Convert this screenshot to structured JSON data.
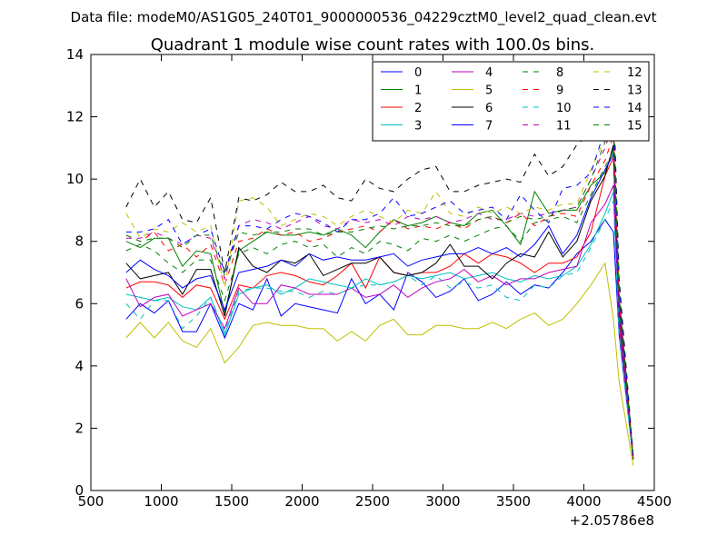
{
  "chart_data": {
    "type": "line",
    "suptitle": "Data file: modeM0/AS1G05_240T01_9000000536_04229cztM0_level2_quad_clean.evt",
    "title": "Quadrant 1 module wise count rates with 100.0s bins.",
    "xlabel": "",
    "ylabel": "",
    "x_offset_label": "+2.05786e8",
    "xlim": [
      500,
      4500
    ],
    "ylim": [
      0,
      14
    ],
    "xticks": [
      500,
      1000,
      1500,
      2000,
      2500,
      3000,
      3500,
      4000,
      4500
    ],
    "yticks": [
      0,
      2,
      4,
      6,
      8,
      10,
      12,
      14
    ],
    "grid": false,
    "legend_position": "top-right",
    "x": [
      750,
      850,
      950,
      1050,
      1150,
      1250,
      1350,
      1450,
      1550,
      1650,
      1750,
      1850,
      1950,
      2050,
      2150,
      2250,
      2350,
      2450,
      2550,
      2650,
      2750,
      2850,
      2950,
      3050,
      3150,
      3250,
      3350,
      3450,
      3550,
      3650,
      3750,
      3850,
      3950,
      4050,
      4150,
      4210,
      4250,
      4350
    ],
    "series": [
      {
        "name": "0",
        "color": "#0000ff",
        "dash": "solid",
        "values": [
          5.5,
          6.0,
          5.7,
          6.1,
          5.1,
          5.1,
          6.0,
          4.9,
          6.0,
          5.8,
          6.8,
          5.6,
          6.0,
          5.9,
          5.8,
          5.7,
          6.8,
          6.0,
          6.3,
          5.8,
          7.0,
          6.7,
          6.2,
          6.4,
          6.8,
          6.1,
          6.3,
          6.7,
          6.3,
          6.6,
          6.5,
          7.0,
          7.6,
          8.0,
          8.7,
          8.3,
          5.0,
          1.0
        ]
      },
      {
        "name": "1",
        "color": "#008000",
        "dash": "solid",
        "values": [
          8.0,
          7.8,
          8.1,
          8.1,
          7.2,
          7.7,
          7.6,
          5.7,
          7.7,
          8.0,
          8.3,
          8.2,
          8.2,
          8.3,
          8.2,
          8.4,
          8.2,
          7.8,
          8.3,
          8.7,
          8.5,
          8.6,
          8.8,
          8.6,
          8.5,
          8.9,
          9.0,
          8.5,
          7.9,
          9.6,
          8.9,
          9.0,
          9.0,
          9.8,
          10.2,
          11.0,
          6.0,
          1.0
        ]
      },
      {
        "name": "2",
        "color": "#ff0000",
        "dash": "solid",
        "values": [
          6.5,
          6.7,
          6.7,
          6.6,
          6.2,
          6.6,
          6.5,
          5.5,
          6.6,
          6.5,
          6.9,
          7.0,
          6.9,
          6.7,
          6.6,
          6.9,
          7.3,
          6.5,
          7.5,
          7.0,
          6.9,
          7.0,
          7.0,
          7.2,
          7.6,
          7.3,
          7.6,
          7.5,
          7.3,
          7.0,
          7.3,
          7.3,
          7.5,
          8.3,
          10.1,
          10.7,
          5.5,
          1.0
        ]
      },
      {
        "name": "3",
        "color": "#00bfbf",
        "dash": "solid",
        "values": [
          6.3,
          6.2,
          6.1,
          6.2,
          5.9,
          5.8,
          6.2,
          5.0,
          6.3,
          6.5,
          6.6,
          6.3,
          6.5,
          6.8,
          6.7,
          6.6,
          6.5,
          6.8,
          6.6,
          6.7,
          6.9,
          6.8,
          6.9,
          7.0,
          6.8,
          6.9,
          7.0,
          6.8,
          6.7,
          6.9,
          6.8,
          6.9,
          7.2,
          7.9,
          8.9,
          9.6,
          5.2,
          1.0
        ]
      },
      {
        "name": "4",
        "color": "#bf00bf",
        "dash": "solid",
        "values": [
          6.8,
          5.9,
          6.2,
          6.3,
          5.6,
          5.8,
          6.0,
          5.2,
          6.5,
          6.0,
          6.0,
          6.6,
          6.5,
          6.3,
          6.3,
          6.3,
          6.5,
          6.2,
          6.3,
          6.6,
          6.2,
          6.5,
          6.7,
          6.8,
          7.1,
          6.7,
          6.9,
          6.6,
          6.8,
          6.8,
          7.0,
          7.1,
          7.2,
          8.6,
          9.2,
          9.8,
          5.3,
          1.0
        ]
      },
      {
        "name": "5",
        "color": "#bfbf00",
        "dash": "solid",
        "values": [
          4.9,
          5.4,
          4.9,
          5.4,
          4.8,
          4.6,
          5.2,
          4.1,
          4.6,
          5.3,
          5.4,
          5.3,
          5.3,
          5.2,
          5.2,
          4.8,
          5.1,
          4.8,
          5.3,
          5.5,
          5.0,
          5.0,
          5.3,
          5.3,
          5.2,
          5.2,
          5.4,
          5.2,
          5.5,
          5.7,
          5.3,
          5.5,
          6.0,
          6.6,
          7.3,
          5.5,
          3.5,
          0.8
        ]
      },
      {
        "name": "6",
        "color": "#000000",
        "dash": "solid",
        "values": [
          7.3,
          6.8,
          6.9,
          7.0,
          6.3,
          7.1,
          7.1,
          5.6,
          7.8,
          7.2,
          7.0,
          7.4,
          7.3,
          7.6,
          6.9,
          7.1,
          7.3,
          7.3,
          7.5,
          7.0,
          6.9,
          7.0,
          7.3,
          7.9,
          7.2,
          7.2,
          6.8,
          7.3,
          7.6,
          7.5,
          8.3,
          7.5,
          8.0,
          9.3,
          10.1,
          11.1,
          6.2,
          1.1
        ]
      },
      {
        "name": "7",
        "color": "#0000ff",
        "dash": "solid",
        "values": [
          7.0,
          7.4,
          7.1,
          6.9,
          6.5,
          6.8,
          6.9,
          5.8,
          7.0,
          7.1,
          7.2,
          7.4,
          7.2,
          7.6,
          7.4,
          7.5,
          7.4,
          7.4,
          7.5,
          7.6,
          7.2,
          7.4,
          7.5,
          7.6,
          7.6,
          7.8,
          7.6,
          7.8,
          7.5,
          7.9,
          8.5,
          7.6,
          8.2,
          9.4,
          10.3,
          10.8,
          5.8,
          1.0
        ]
      },
      {
        "name": "8",
        "color": "#008000",
        "dash": "dashed",
        "values": [
          7.7,
          7.9,
          7.7,
          7.3,
          7.0,
          7.4,
          7.4,
          6.1,
          7.6,
          7.8,
          7.6,
          7.9,
          8.0,
          7.8,
          7.9,
          7.5,
          7.8,
          7.6,
          8.0,
          7.9,
          7.7,
          8.1,
          8.0,
          8.2,
          8.0,
          8.2,
          8.4,
          8.5,
          8.0,
          8.6,
          8.7,
          8.8,
          8.6,
          9.5,
          10.4,
          10.9,
          5.9,
          1.0
        ]
      },
      {
        "name": "9",
        "color": "#ff0000",
        "dash": "dashed",
        "values": [
          8.2,
          8.0,
          8.3,
          7.7,
          7.9,
          7.5,
          7.9,
          6.6,
          8.0,
          8.1,
          8.4,
          8.2,
          8.3,
          8.0,
          8.1,
          8.3,
          8.4,
          8.5,
          8.3,
          8.7,
          8.4,
          8.5,
          8.4,
          8.6,
          8.4,
          8.7,
          8.8,
          8.6,
          8.9,
          8.5,
          8.8,
          8.9,
          8.8,
          9.8,
          10.6,
          11.4,
          6.1,
          1.0
        ]
      },
      {
        "name": "10",
        "color": "#00bfbf",
        "dash": "dashed",
        "values": [
          6.0,
          5.5,
          6.1,
          6.1,
          5.2,
          5.6,
          6.2,
          5.1,
          6.4,
          6.5,
          6.5,
          6.4,
          6.4,
          6.2,
          6.4,
          6.3,
          6.5,
          6.6,
          6.6,
          6.7,
          6.9,
          6.6,
          6.9,
          6.5,
          6.7,
          6.5,
          6.6,
          6.2,
          6.1,
          6.6,
          6.5,
          6.9,
          7.0,
          7.8,
          8.7,
          9.3,
          5.0,
          1.0
        ]
      },
      {
        "name": "11",
        "color": "#bf00bf",
        "dash": "dashed",
        "values": [
          8.1,
          8.1,
          8.3,
          8.1,
          7.9,
          8.2,
          8.1,
          6.8,
          8.5,
          8.7,
          8.6,
          8.4,
          8.6,
          8.8,
          8.5,
          8.4,
          8.7,
          8.6,
          8.7,
          8.5,
          8.8,
          8.7,
          8.8,
          8.6,
          8.7,
          8.9,
          8.7,
          8.7,
          8.9,
          8.8,
          8.9,
          9.0,
          9.1,
          10.0,
          11.0,
          11.8,
          6.3,
          1.0
        ]
      },
      {
        "name": "12",
        "color": "#bfbf00",
        "dash": "dashed",
        "values": [
          8.9,
          8.1,
          8.4,
          8.3,
          8.6,
          8.3,
          8.5,
          6.5,
          9.3,
          9.4,
          9.1,
          8.5,
          8.7,
          8.9,
          8.8,
          8.5,
          8.8,
          9.0,
          8.8,
          8.6,
          9.0,
          8.9,
          9.6,
          8.9,
          8.8,
          9.1,
          8.9,
          9.1,
          8.9,
          9.1,
          9.0,
          9.2,
          9.2,
          10.3,
          11.3,
          12.2,
          6.5,
          1.1
        ]
      },
      {
        "name": "13",
        "color": "#000000",
        "dash": "dashed",
        "values": [
          9.1,
          10.0,
          9.1,
          9.6,
          8.7,
          8.6,
          9.4,
          7.0,
          9.4,
          9.3,
          9.5,
          9.9,
          9.6,
          9.6,
          9.8,
          9.4,
          9.3,
          10.0,
          9.7,
          9.6,
          10.0,
          10.3,
          10.4,
          9.6,
          9.6,
          9.8,
          9.9,
          10.0,
          9.9,
          10.8,
          10.1,
          10.4,
          11.1,
          11.5,
          12.2,
          12.9,
          6.8,
          1.1
        ]
      },
      {
        "name": "14",
        "color": "#0000ff",
        "dash": "dashed",
        "values": [
          8.3,
          8.3,
          8.4,
          8.7,
          7.9,
          8.2,
          8.4,
          7.0,
          8.5,
          8.5,
          8.4,
          8.7,
          8.9,
          8.8,
          8.6,
          8.3,
          8.7,
          8.7,
          8.9,
          9.4,
          8.8,
          8.9,
          9.1,
          9.3,
          8.9,
          9.0,
          9.1,
          8.7,
          9.5,
          9.0,
          8.6,
          9.7,
          9.8,
          10.2,
          11.6,
          12.4,
          6.6,
          1.0
        ]
      },
      {
        "name": "15",
        "color": "#008000",
        "dash": "dashed",
        "values": [
          8.2,
          8.0,
          8.1,
          8.1,
          7.8,
          8.2,
          8.2,
          6.9,
          8.3,
          8.2,
          8.3,
          8.3,
          8.4,
          8.4,
          8.2,
          8.3,
          8.3,
          8.4,
          8.5,
          8.4,
          8.5,
          8.5,
          8.6,
          8.5,
          8.5,
          8.7,
          8.8,
          8.6,
          8.8,
          8.7,
          8.8,
          9.0,
          9.1,
          10.0,
          11.2,
          12.0,
          6.4,
          1.0
        ]
      }
    ]
  }
}
